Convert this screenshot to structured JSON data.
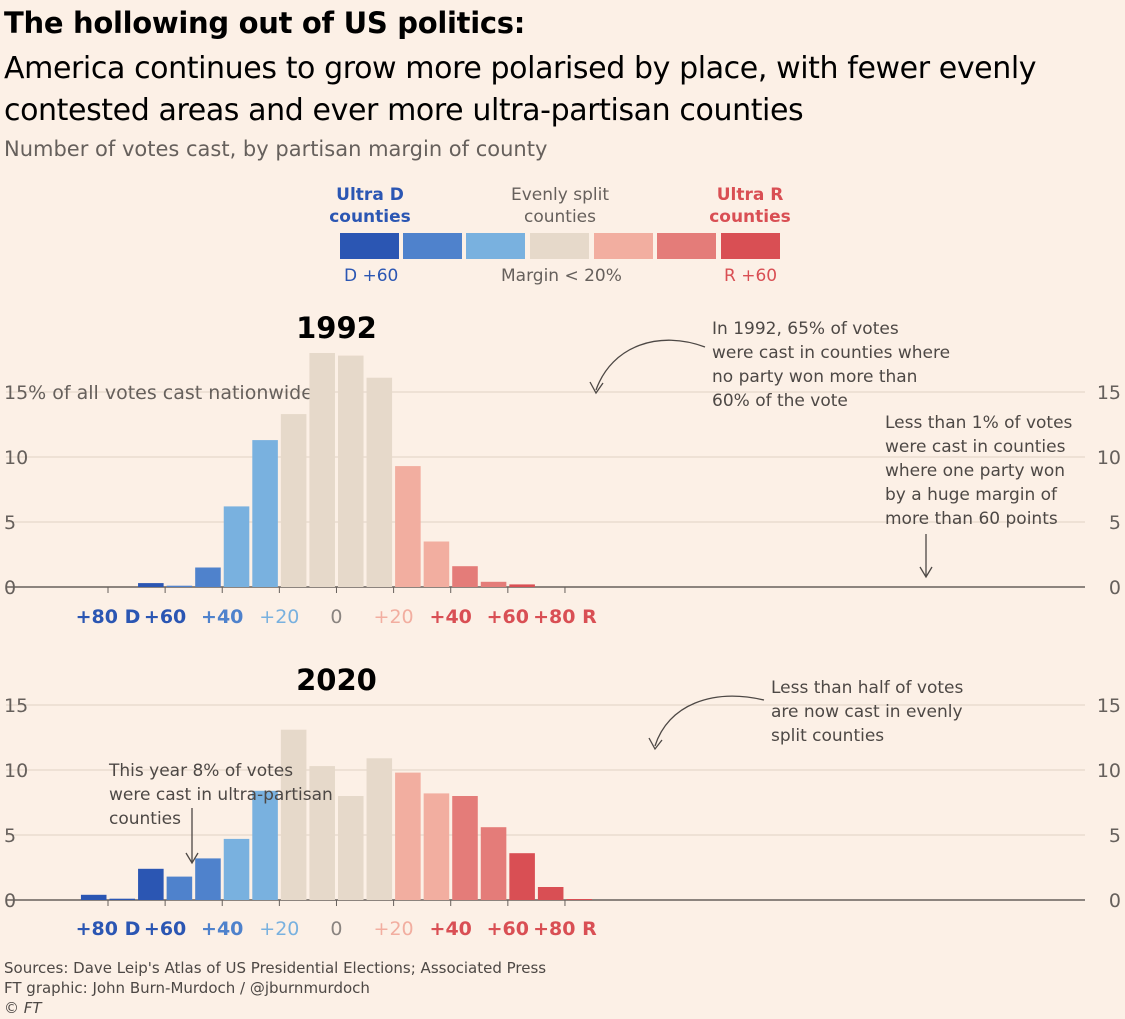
{
  "header": {
    "title": "The hollowing out of US politics:",
    "subtitle": "America continues to grow more polarised by place, with fewer evenly contested areas and ever more ultra-partisan counties",
    "caption": "Number of votes cast, by partisan margin of county"
  },
  "legend": {
    "ultra_d": "Ultra D counties",
    "even": "Evenly split counties",
    "ultra_r": "Ultra R counties",
    "d60": "D +60",
    "margin": "Margin < 20%",
    "r60": "R +60",
    "colors": [
      "#2b56b3",
      "#4f82cc",
      "#79b1df",
      "#e6d9ca",
      "#f2aea0",
      "#e47c79",
      "#d94f54"
    ],
    "color_ultra_d": "#2b56b3",
    "color_ultra_r": "#d94f54"
  },
  "chart_data": [
    {
      "type": "bar",
      "title": "1992",
      "y_axis_label": "15% of all votes cast nationwide",
      "ylim": [
        0,
        15
      ],
      "yticks": [
        "0",
        "5",
        "10",
        "15"
      ],
      "xticks": [
        "+80 D",
        "+60",
        "+40",
        "+20",
        "0",
        "+20",
        "+40",
        "+60",
        "+80 R"
      ],
      "bin_width": 10,
      "bins_start": -90,
      "values": [
        0,
        0,
        0.3,
        0.1,
        1.5,
        6.2,
        11.3,
        13.3,
        18.0,
        17.8,
        16.1,
        9.3,
        3.5,
        1.6,
        0.4,
        0.2,
        0,
        0
      ],
      "annotations": [
        "In 1992, 65% of votes were cast in counties where no party won more than 60% of the vote",
        "Less than 1% of votes were cast in counties where one party won by a huge margin of more than 60 points"
      ],
      "grid": true
    },
    {
      "type": "bar",
      "title": "2020",
      "ylim": [
        0,
        15
      ],
      "yticks": [
        "0",
        "5",
        "10",
        "15"
      ],
      "xticks": [
        "+80 D",
        "+60",
        "+40",
        "+20",
        "0",
        "+20",
        "+40",
        "+60",
        "+80 R"
      ],
      "bin_width": 10,
      "bins_start": -90,
      "values": [
        0.4,
        0.1,
        2.4,
        1.8,
        3.2,
        4.7,
        8.4,
        13.1,
        10.3,
        8.0,
        10.9,
        9.8,
        8.2,
        8.0,
        5.6,
        3.6,
        1.0,
        0.05
      ],
      "annotations": [
        "This year 8% of votes were cast in ultra-partisan counties",
        "Less than half of votes are now cast in evenly split counties"
      ],
      "grid": true
    }
  ],
  "footer": {
    "sources": "Sources: Dave Leip's Atlas of US Presidential Elections; Associated Press",
    "credit": "FT graphic: John Burn-Murdoch / @jburnmurdoch",
    "copyright": "© FT"
  }
}
